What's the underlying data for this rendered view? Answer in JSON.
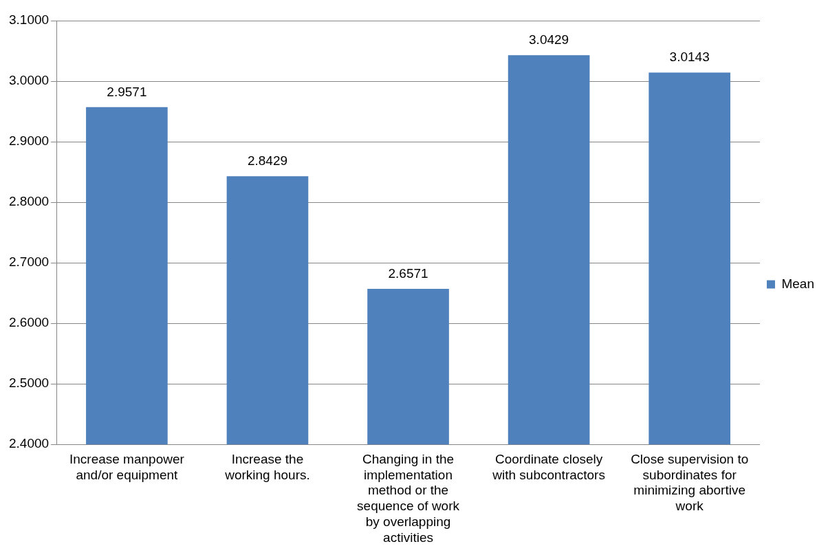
{
  "chart_data": {
    "type": "bar",
    "categories": [
      "Increase manpower and/or equipment",
      "Increase the working hours.",
      "Changing in the implementation method or the sequence of work by overlapping activities",
      "Coordinate closely with subcontractors",
      "Close supervision to subordinates for minimizing abortive work"
    ],
    "series": [
      {
        "name": "Mean",
        "color": "#4f81bd",
        "values": [
          2.9571,
          2.8429,
          2.6571,
          3.0429,
          3.0143
        ]
      }
    ],
    "ylim": [
      2.4,
      3.1
    ],
    "yticks": [
      {
        "value": 2.4,
        "label": "2.4000"
      },
      {
        "value": 2.5,
        "label": "2.5000"
      },
      {
        "value": 2.6,
        "label": "2.6000"
      },
      {
        "value": 2.7,
        "label": "2.7000"
      },
      {
        "value": 2.8,
        "label": "2.8000"
      },
      {
        "value": 2.9,
        "label": "2.9000"
      },
      {
        "value": 3.0,
        "label": "3.0000"
      },
      {
        "value": 3.1,
        "label": "3.1000"
      }
    ],
    "grid": "y",
    "legend": "right",
    "data_labels": true
  }
}
